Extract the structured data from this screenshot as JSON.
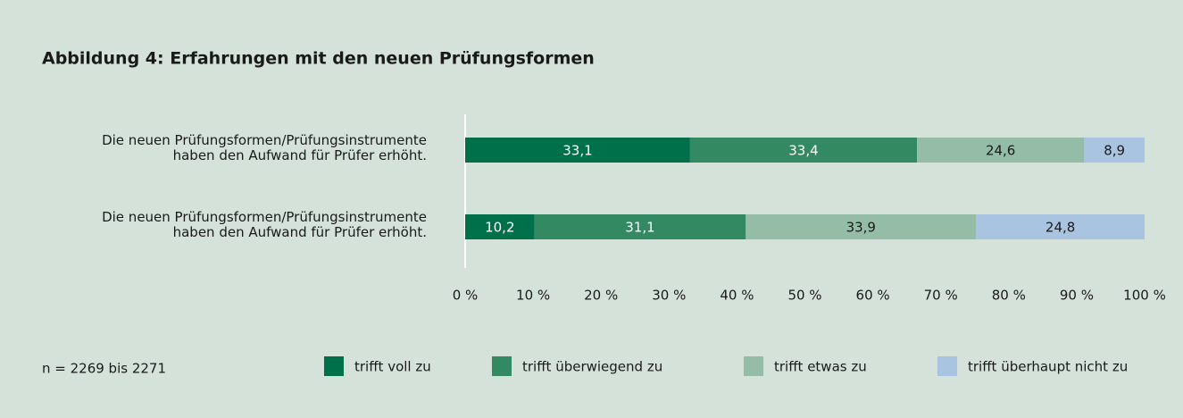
{
  "chart_data": {
    "type": "stacked_bar_horizontal",
    "title": "Abbildung 4: Erfahrungen mit den neuen Prüfungsformen",
    "categories": [
      "Die neuen Prüfungsformen/Prüfungsinstrumente\nhaben den Aufwand für Prüfer erhöht.",
      "Die neuen Prüfungsformen/Prüfungsinstrumente\nhaben den Aufwand für Prüfer erhöht."
    ],
    "series": [
      {
        "name": "trifft voll zu",
        "color": "#00704a",
        "values": [
          33.1,
          10.2
        ],
        "value_labels": [
          "33,1",
          "10,2"
        ]
      },
      {
        "name": "trifft überwiegend zu",
        "color": "#338a62",
        "values": [
          33.4,
          31.1
        ],
        "value_labels": [
          "33,4",
          "31,1"
        ]
      },
      {
        "name": "trifft etwas zu",
        "color": "#94bca6",
        "values": [
          24.6,
          33.9
        ],
        "value_labels": [
          "24,6",
          "33,9"
        ]
      },
      {
        "name": "trifft überhaupt nicht zu",
        "color": "#a9c4e0",
        "values": [
          8.9,
          24.8
        ],
        "value_labels": [
          "8,9",
          "24,8"
        ]
      }
    ],
    "xlim": [
      0,
      100
    ],
    "xticks": [
      {
        "value": 0,
        "label": "0 %"
      },
      {
        "value": 10,
        "label": "10 %"
      },
      {
        "value": 20,
        "label": "20 %"
      },
      {
        "value": 30,
        "label": "30 %"
      },
      {
        "value": 40,
        "label": "40 %"
      },
      {
        "value": 50,
        "label": "50 %"
      },
      {
        "value": 60,
        "label": "60 %"
      },
      {
        "value": 70,
        "label": "70 %"
      },
      {
        "value": 80,
        "label": "80 %"
      },
      {
        "value": 90,
        "label": "90 %"
      },
      {
        "value": 100,
        "label": "100 %"
      }
    ],
    "annotation": "n = 2269 bis 2271",
    "legend": "bottom"
  }
}
